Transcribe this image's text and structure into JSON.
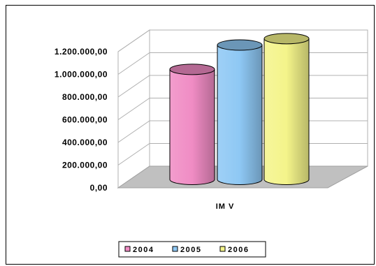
{
  "chart_data": {
    "type": "bar",
    "shape": "3d-cylinder",
    "categories": [
      "IM V"
    ],
    "xlabel": "IM V",
    "ylabel": "",
    "title": "",
    "ylim": [
      0,
      1200000
    ],
    "yticks": [
      0,
      200000,
      400000,
      600000,
      800000,
      1000000,
      1200000
    ],
    "ytick_labels": [
      "0,00",
      "200.000,00",
      "400.000,00",
      "600.000,00",
      "800.000,00",
      "1.000.000,00",
      "1.200.000,00"
    ],
    "grid": true,
    "legend_position": "bottom",
    "series": [
      {
        "name": "2004",
        "values": [
          860000
        ],
        "color": "#f08cc4"
      },
      {
        "name": "2005",
        "values": [
          1050000
        ],
        "color": "#8ec8f4"
      },
      {
        "name": "2006",
        "values": [
          1100000
        ],
        "color": "#f4f48a"
      }
    ]
  }
}
